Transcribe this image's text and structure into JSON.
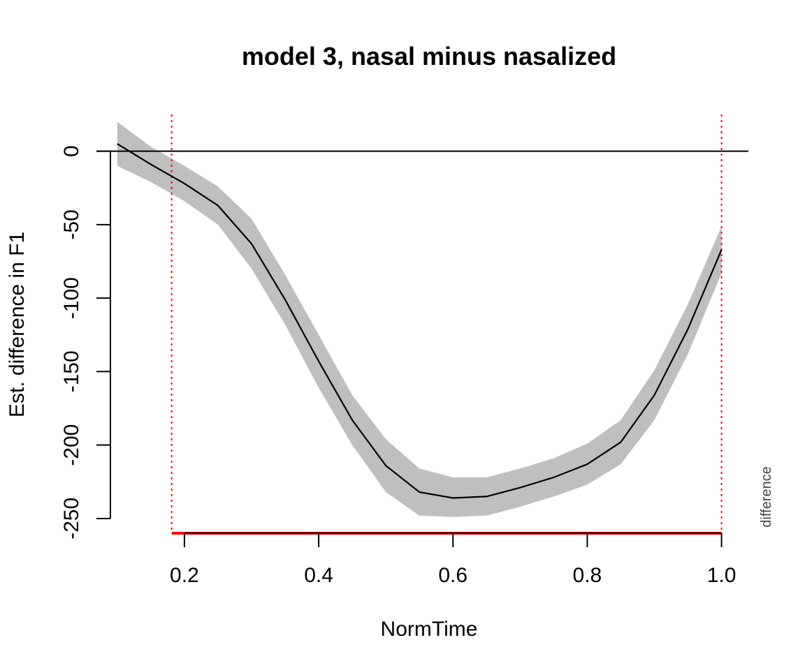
{
  "chart_data": {
    "type": "line",
    "title": "model 3, nasal minus nasalized",
    "xlabel": "NormTime",
    "ylabel": "Est. difference in F1",
    "side_label": "difference",
    "xlim": [
      0.07,
      1.04
    ],
    "ylim": [
      -260,
      25
    ],
    "x_ticks": [
      0.2,
      0.4,
      0.6,
      0.8,
      1.0
    ],
    "x_tick_labels": [
      "0.2",
      "0.4",
      "0.6",
      "0.8",
      "1.0"
    ],
    "y_ticks": [
      0,
      -50,
      -100,
      -150,
      -200,
      -250
    ],
    "y_tick_labels": [
      "0",
      "-50",
      "-100",
      "-150",
      "-200",
      "-250"
    ],
    "reference_line_y": 0,
    "significance_bounds": [
      0.181,
      1.0
    ],
    "significance_region": {
      "from": 0.181,
      "to": 1.0,
      "color": "#e31a1c"
    },
    "colors": {
      "line": "#000000",
      "band": "#bfbfbf",
      "significance": "#ff0000"
    },
    "series": [
      {
        "x": [
          0.1,
          0.15,
          0.2,
          0.25,
          0.3,
          0.35,
          0.4,
          0.45,
          0.5,
          0.55,
          0.6,
          0.65,
          0.7,
          0.75,
          0.8,
          0.85,
          0.9,
          0.95,
          1.0
        ],
        "y": [
          5,
          -9,
          -22,
          -37,
          -63,
          -101,
          -143,
          -183,
          -214,
          -232,
          -236,
          -235,
          -229,
          -222,
          -213,
          -198,
          -166,
          -121,
          -67
        ],
        "lower": [
          -10,
          -21,
          -34,
          -50,
          -80,
          -118,
          -161,
          -200,
          -232,
          -248,
          -249,
          -248,
          -242,
          -235,
          -227,
          -213,
          -183,
          -138,
          -83
        ],
        "upper": [
          20,
          3,
          -10,
          -24,
          -46,
          -84,
          -125,
          -166,
          -196,
          -216,
          -222,
          -222,
          -216,
          -209,
          -199,
          -183,
          -149,
          -104,
          -51
        ]
      }
    ]
  }
}
